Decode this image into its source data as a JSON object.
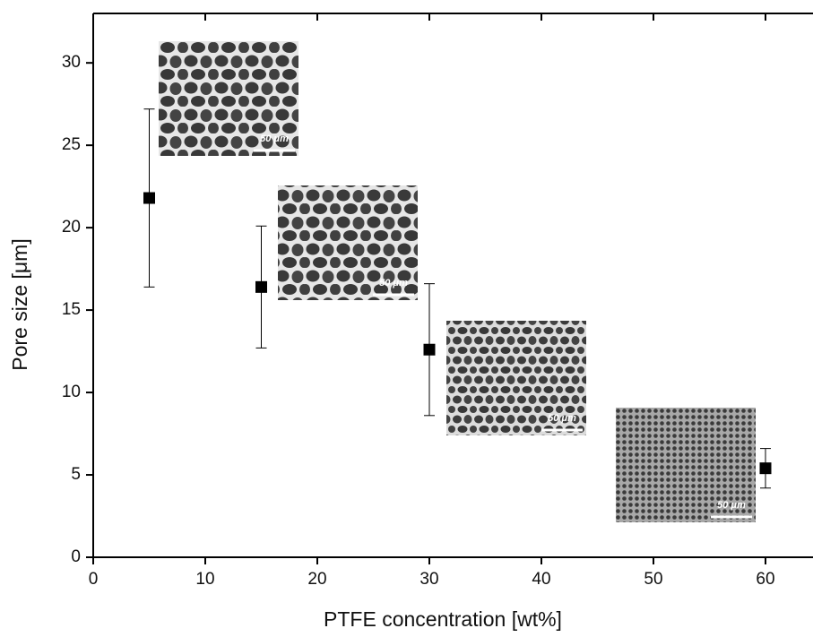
{
  "chart_data": {
    "type": "scatter",
    "x_label": "PTFE concentration [wt%]",
    "y_label": "Pore size [μm]",
    "x": [
      5,
      15,
      30,
      60
    ],
    "series": [
      {
        "color": "#000000",
        "values": [
          21.8,
          16.4,
          12.6,
          5.4
        ],
        "errors": [
          5.4,
          3.7,
          4.0,
          1.2
        ]
      }
    ],
    "inset_labels": [
      "50 μm",
      "50 μm",
      "50 μm",
      "50 μm"
    ],
    "xlim": [
      0,
      64
    ],
    "ylim": [
      0,
      33
    ],
    "xticks": [
      0,
      10,
      20,
      30,
      40,
      50,
      60
    ],
    "yticks": [
      0,
      5,
      10,
      15,
      20,
      25,
      30
    ],
    "grid": false
  }
}
